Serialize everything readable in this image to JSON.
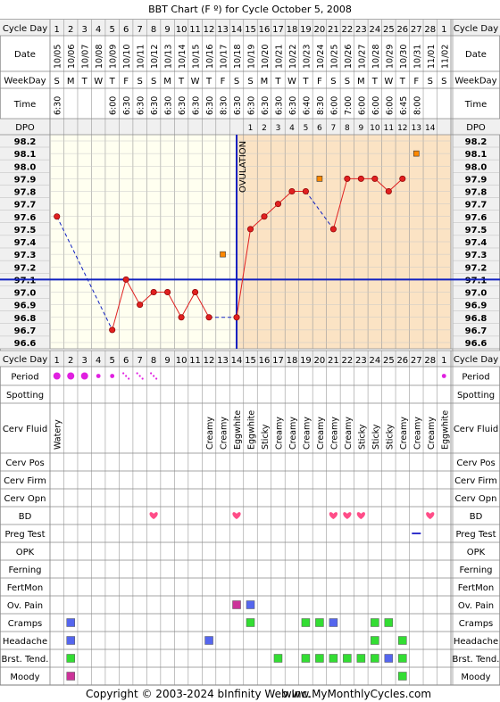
{
  "title": "BBT Chart (F º) for Cycle October 5, 2008",
  "labels": {
    "cycle_day": "Cycle Day",
    "date": "Date",
    "weekday": "WeekDay",
    "time": "Time",
    "dpo": "DPO",
    "period": "Period",
    "spotting": "Spotting",
    "cerv_fluid": "Cerv Fluid",
    "cerv_pos": "Cerv Pos",
    "cerv_firm": "Cerv Firm",
    "cerv_opn": "Cerv Opn",
    "bd": "BD",
    "preg_test": "Preg Test",
    "opk": "OPK",
    "ferning": "Ferning",
    "fertmon": "FertMon",
    "ov_pain": "Ov. Pain",
    "cramps": "Cramps",
    "headache": "Headache",
    "brst_tend": "Brst. Tend.",
    "moody": "Moody"
  },
  "ovulation_label": "OVULATION",
  "copyright": "Copyright © 2003-2024 bInfinity Web Inc.",
  "website": "www.MyMonthlyCycles.com",
  "colors": {
    "curve": "#e02020",
    "coverline": "#1020c0",
    "luteal_shade": "#fbe3c4",
    "follicular_bg": "#fffff0",
    "period": "#e020e0",
    "bd_heart": "#ff4d88",
    "symptom_green": "#33dd33",
    "symptom_blue": "#5566ee",
    "symptom_magenta": "#cc3399",
    "alt_marker": "#ff8800"
  },
  "chart_data": {
    "type": "line",
    "title": "BBT Chart (F º) for Cycle October 5, 2008",
    "ylim": [
      96.6,
      98.2
    ],
    "y_ticks": [
      "98.2",
      "98.1",
      "98.0",
      "97.9",
      "97.8",
      "97.7",
      "97.6",
      "97.5",
      "97.4",
      "97.3",
      "97.2",
      "97.1",
      "97.0",
      "96.9",
      "96.8",
      "96.7",
      "96.6"
    ],
    "cycle_days": [
      "1",
      "2",
      "3",
      "4",
      "5",
      "6",
      "7",
      "8",
      "9",
      "10",
      "11",
      "12",
      "13",
      "14",
      "15",
      "16",
      "17",
      "18",
      "19",
      "20",
      "21",
      "22",
      "23",
      "24",
      "25",
      "26",
      "27",
      "28",
      "1"
    ],
    "dates": [
      "10/05",
      "10/06",
      "10/07",
      "10/08",
      "10/09",
      "10/10",
      "10/11",
      "10/12",
      "10/13",
      "10/14",
      "10/15",
      "10/16",
      "10/17",
      "10/18",
      "10/19",
      "10/20",
      "10/21",
      "10/22",
      "10/23",
      "10/24",
      "10/25",
      "10/26",
      "10/27",
      "10/28",
      "10/29",
      "10/30",
      "10/31",
      "11/01",
      "11/02"
    ],
    "weekdays": [
      "S",
      "M",
      "T",
      "W",
      "T",
      "F",
      "S",
      "S",
      "M",
      "T",
      "W",
      "T",
      "F",
      "S",
      "S",
      "M",
      "T",
      "W",
      "T",
      "F",
      "S",
      "S",
      "M",
      "T",
      "W",
      "T",
      "F",
      "S",
      "S"
    ],
    "times": [
      "6:30",
      "",
      "",
      "",
      "6:00",
      "6:30",
      "6:30",
      "6:30",
      "6:30",
      "6:30",
      "6:30",
      "6:30",
      "8:30",
      "6:30",
      "6:30",
      "6:30",
      "6:30",
      "6:30",
      "6:40",
      "8:30",
      "6:00",
      "7:00",
      "6:00",
      "6:00",
      "6:00",
      "6:45",
      "8:00",
      "",
      ""
    ],
    "dpo": [
      "",
      "",
      "",
      "",
      "",
      "",
      "",
      "",
      "",
      "",
      "",
      "",
      "",
      "",
      "1",
      "2",
      "3",
      "4",
      "5",
      "6",
      "7",
      "8",
      "9",
      "10",
      "11",
      "12",
      "13",
      "14",
      ""
    ],
    "temps": [
      97.6,
      null,
      null,
      null,
      96.7,
      97.1,
      96.9,
      97.0,
      97.0,
      96.8,
      97.0,
      96.8,
      null,
      96.8,
      97.5,
      97.6,
      97.7,
      97.8,
      97.8,
      null,
      97.5,
      97.9,
      97.9,
      97.9,
      97.8,
      97.9,
      null,
      null,
      null
    ],
    "alternate_temps": [
      {
        "day_index": 12,
        "value": 97.3
      },
      {
        "day_index": 19,
        "value": 97.9
      },
      {
        "day_index": 26,
        "value": 98.1
      }
    ],
    "coverline": 97.1,
    "ovulation_day_index": 13,
    "period": [
      "heavy",
      "heavy",
      "heavy",
      "light",
      "light",
      "spot",
      "spot",
      "spot",
      "",
      "",
      "",
      "",
      "",
      "",
      "",
      "",
      "",
      "",
      "",
      "",
      "",
      "",
      "",
      "",
      "",
      "",
      "",
      "",
      "light"
    ],
    "cerv_fluid": [
      "Watery",
      "",
      "",
      "",
      "",
      "",
      "",
      "",
      "",
      "",
      "",
      "Creamy",
      "Creamy",
      "Eggwhite",
      "Eggwhite",
      "Sticky",
      "Creamy",
      "Creamy",
      "Creamy",
      "Creamy",
      "Creamy",
      "Creamy",
      "Sticky",
      "Sticky",
      "Sticky",
      "Creamy",
      "Creamy",
      "Creamy",
      "Eggwhite"
    ],
    "bd": [
      7,
      13,
      20,
      21,
      22,
      27
    ],
    "preg_test": [
      26
    ],
    "ov_pain": [
      {
        "day_index": 13,
        "color": "magenta"
      },
      {
        "day_index": 14,
        "color": "blue"
      }
    ],
    "cramps": [
      {
        "day_index": 1,
        "color": "blue"
      },
      {
        "day_index": 14,
        "color": "green"
      },
      {
        "day_index": 18,
        "color": "green"
      },
      {
        "day_index": 19,
        "color": "green"
      },
      {
        "day_index": 20,
        "color": "blue"
      },
      {
        "day_index": 23,
        "color": "green"
      },
      {
        "day_index": 24,
        "color": "green"
      }
    ],
    "headache": [
      {
        "day_index": 1,
        "color": "blue"
      },
      {
        "day_index": 11,
        "color": "blue"
      },
      {
        "day_index": 23,
        "color": "green"
      },
      {
        "day_index": 25,
        "color": "green"
      }
    ],
    "brst_tend": [
      {
        "day_index": 1,
        "color": "green"
      },
      {
        "day_index": 16,
        "color": "green"
      },
      {
        "day_index": 18,
        "color": "green"
      },
      {
        "day_index": 19,
        "color": "green"
      },
      {
        "day_index": 20,
        "color": "green"
      },
      {
        "day_index": 21,
        "color": "green"
      },
      {
        "day_index": 22,
        "color": "green"
      },
      {
        "day_index": 23,
        "color": "green"
      },
      {
        "day_index": 24,
        "color": "blue"
      },
      {
        "day_index": 25,
        "color": "green"
      }
    ],
    "moody": [
      {
        "day_index": 1,
        "color": "magenta"
      },
      {
        "day_index": 25,
        "color": "green"
      }
    ]
  }
}
